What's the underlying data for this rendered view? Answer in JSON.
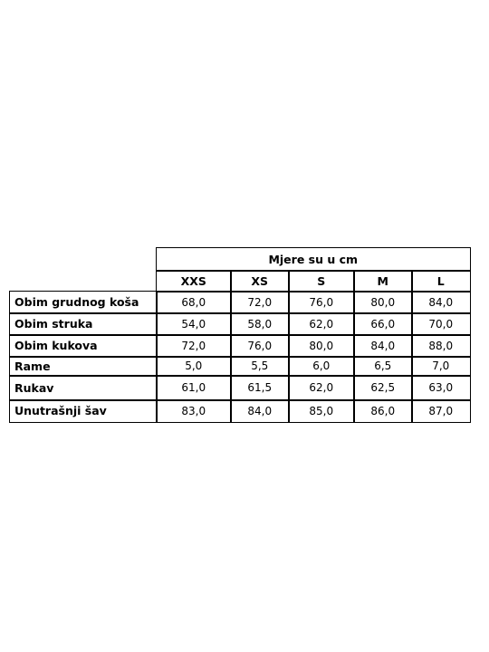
{
  "header": {
    "title": "Mjere su u cm"
  },
  "table": {
    "columns": [
      "XXS",
      "XS",
      "S",
      "M",
      "L"
    ],
    "rows": [
      [
        "Obim grudnog koša",
        "68,0",
        "72,0",
        "76,0",
        "80,0",
        "84,0"
      ],
      [
        "Obim struka",
        "54,0",
        "58,0",
        "62,0",
        "66,0",
        "70,0"
      ],
      [
        "Obim kukova",
        "72,0",
        "76,0",
        "80,0",
        "84,0",
        "88,0"
      ],
      [
        "Rame",
        "5,0",
        "5,5",
        "6,0",
        "6,5",
        "7,0"
      ],
      [
        "Rukav",
        "61,0",
        "61,5",
        "62,0",
        "62,5",
        "63,0"
      ],
      [
        "Unutrašnji šav",
        "83,0",
        "84,0",
        "85,0",
        "86,0",
        "87,0"
      ]
    ]
  }
}
